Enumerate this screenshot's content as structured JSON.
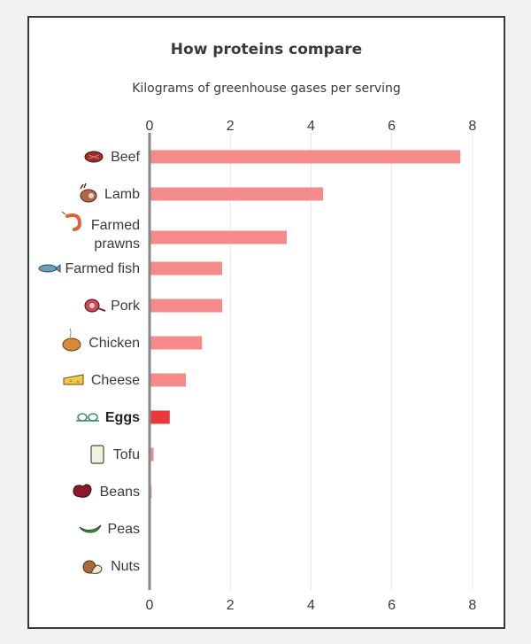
{
  "title": "How proteins compare",
  "subtitle": "Kilograms of greenhouse gases per serving",
  "colors": {
    "bar": "#f58a8a",
    "highlight": "#e83a3a",
    "grid": "#e6e6e6",
    "axis": "#888888"
  },
  "chart_data": {
    "type": "bar",
    "orientation": "horizontal",
    "title": "How proteins compare",
    "subtitle": "Kilograms of greenhouse gases per serving",
    "xlabel": "",
    "ylabel": "",
    "xlim": [
      0,
      8
    ],
    "ticks": [
      0,
      2,
      4,
      6,
      8
    ],
    "grid": true,
    "categories": [
      {
        "lines": [
          "Beef"
        ],
        "icon": "steak-icon"
      },
      {
        "lines": [
          "Lamb"
        ],
        "icon": "lamb-leg-icon"
      },
      {
        "lines": [
          "Farmed",
          "prawns"
        ],
        "icon": "prawn-icon"
      },
      {
        "lines": [
          "Farmed fish"
        ],
        "icon": "fish-icon"
      },
      {
        "lines": [
          "Pork"
        ],
        "icon": "ham-icon"
      },
      {
        "lines": [
          "Chicken"
        ],
        "icon": "roast-chicken-icon"
      },
      {
        "lines": [
          "Cheese"
        ],
        "icon": "cheese-icon"
      },
      {
        "lines": [
          "Eggs"
        ],
        "icon": "eggs-icon",
        "highlight": true
      },
      {
        "lines": [
          "Tofu"
        ],
        "icon": "tofu-icon"
      },
      {
        "lines": [
          "Beans"
        ],
        "icon": "bean-icon"
      },
      {
        "lines": [
          "Peas"
        ],
        "icon": "pea-pod-icon"
      },
      {
        "lines": [
          "Nuts"
        ],
        "icon": "nuts-icon"
      }
    ],
    "values": [
      7.7,
      4.3,
      3.4,
      1.8,
      1.8,
      1.3,
      0.9,
      0.5,
      0.1,
      0.05,
      0.0,
      0.0
    ]
  }
}
